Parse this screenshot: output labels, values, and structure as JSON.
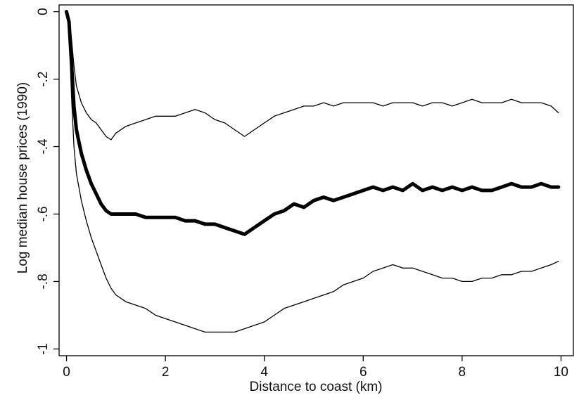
{
  "chart_data": {
    "type": "line",
    "title": "",
    "xlabel": "Distance to coast (km)",
    "ylabel": "Log median house prices (1990)",
    "xlim": [
      -0.15,
      10.25
    ],
    "ylim": [
      -1.02,
      0.02
    ],
    "x_ticks": [
      0,
      2,
      4,
      6,
      8,
      10
    ],
    "x_tick_labels": [
      "0",
      "2",
      "4",
      "6",
      "8",
      "10"
    ],
    "y_ticks": [
      0,
      -0.2,
      -0.4,
      -0.6,
      -0.8,
      -1
    ],
    "y_tick_labels": [
      "0",
      "-.2",
      "-.4",
      "-.6",
      "-.8",
      "-1"
    ],
    "grid": false,
    "legend": "none",
    "series": [
      {
        "role": "estimate",
        "color": "#000000",
        "x": [
          0,
          0.05,
          0.1,
          0.15,
          0.2,
          0.3,
          0.4,
          0.5,
          0.6,
          0.7,
          0.8,
          0.9,
          1.0,
          1.2,
          1.4,
          1.6,
          1.8,
          2.0,
          2.2,
          2.4,
          2.6,
          2.8,
          3.0,
          3.2,
          3.4,
          3.6,
          3.8,
          4.0,
          4.2,
          4.4,
          4.6,
          4.8,
          5.0,
          5.2,
          5.4,
          5.6,
          5.8,
          6.0,
          6.2,
          6.4,
          6.6,
          6.8,
          7.0,
          7.2,
          7.4,
          7.6,
          7.8,
          8.0,
          8.2,
          8.4,
          8.6,
          8.8,
          9.0,
          9.2,
          9.4,
          9.6,
          9.8,
          9.95
        ],
        "y": [
          0,
          -0.03,
          -0.15,
          -0.28,
          -0.35,
          -0.42,
          -0.47,
          -0.51,
          -0.54,
          -0.57,
          -0.59,
          -0.6,
          -0.6,
          -0.6,
          -0.6,
          -0.61,
          -0.61,
          -0.61,
          -0.61,
          -0.62,
          -0.62,
          -0.63,
          -0.63,
          -0.64,
          -0.65,
          -0.66,
          -0.64,
          -0.62,
          -0.6,
          -0.59,
          -0.57,
          -0.58,
          -0.56,
          -0.55,
          -0.56,
          -0.55,
          -0.54,
          -0.53,
          -0.52,
          -0.53,
          -0.52,
          -0.53,
          -0.51,
          -0.53,
          -0.52,
          -0.53,
          -0.52,
          -0.53,
          -0.52,
          -0.53,
          -0.53,
          -0.52,
          -0.51,
          -0.52,
          -0.52,
          -0.51,
          -0.52,
          -0.52
        ]
      },
      {
        "role": "upper-bound",
        "color": "#000000",
        "x": [
          0,
          0.05,
          0.1,
          0.15,
          0.2,
          0.3,
          0.4,
          0.5,
          0.6,
          0.7,
          0.8,
          0.9,
          1.0,
          1.2,
          1.4,
          1.6,
          1.8,
          2.0,
          2.2,
          2.4,
          2.6,
          2.8,
          3.0,
          3.2,
          3.4,
          3.6,
          3.8,
          4.0,
          4.2,
          4.4,
          4.6,
          4.8,
          5.0,
          5.2,
          5.4,
          5.6,
          5.8,
          6.0,
          6.2,
          6.4,
          6.6,
          6.8,
          7.0,
          7.2,
          7.4,
          7.6,
          7.8,
          8.0,
          8.2,
          8.4,
          8.6,
          8.8,
          9.0,
          9.2,
          9.4,
          9.6,
          9.8,
          9.95
        ],
        "y": [
          0,
          -0.02,
          -0.08,
          -0.16,
          -0.22,
          -0.27,
          -0.3,
          -0.32,
          -0.33,
          -0.35,
          -0.37,
          -0.38,
          -0.36,
          -0.34,
          -0.33,
          -0.32,
          -0.31,
          -0.31,
          -0.31,
          -0.3,
          -0.29,
          -0.3,
          -0.32,
          -0.33,
          -0.35,
          -0.37,
          -0.35,
          -0.33,
          -0.31,
          -0.3,
          -0.29,
          -0.28,
          -0.28,
          -0.27,
          -0.28,
          -0.27,
          -0.27,
          -0.27,
          -0.27,
          -0.28,
          -0.27,
          -0.27,
          -0.27,
          -0.28,
          -0.27,
          -0.27,
          -0.28,
          -0.27,
          -0.26,
          -0.27,
          -0.27,
          -0.27,
          -0.26,
          -0.27,
          -0.27,
          -0.27,
          -0.28,
          -0.3
        ]
      },
      {
        "role": "lower-bound",
        "color": "#000000",
        "x": [
          0,
          0.05,
          0.1,
          0.15,
          0.2,
          0.3,
          0.4,
          0.5,
          0.6,
          0.7,
          0.8,
          0.9,
          1.0,
          1.2,
          1.4,
          1.6,
          1.8,
          2.0,
          2.2,
          2.4,
          2.6,
          2.8,
          3.0,
          3.2,
          3.4,
          3.6,
          3.8,
          4.0,
          4.2,
          4.4,
          4.6,
          4.8,
          5.0,
          5.2,
          5.4,
          5.6,
          5.8,
          6.0,
          6.2,
          6.4,
          6.6,
          6.8,
          7.0,
          7.2,
          7.4,
          7.6,
          7.8,
          8.0,
          8.2,
          8.4,
          8.6,
          8.8,
          9.0,
          9.2,
          9.4,
          9.6,
          9.8,
          9.95
        ],
        "y": [
          0,
          -0.04,
          -0.25,
          -0.4,
          -0.48,
          -0.56,
          -0.62,
          -0.67,
          -0.71,
          -0.75,
          -0.79,
          -0.82,
          -0.84,
          -0.86,
          -0.87,
          -0.88,
          -0.9,
          -0.91,
          -0.92,
          -0.93,
          -0.94,
          -0.95,
          -0.95,
          -0.95,
          -0.95,
          -0.94,
          -0.93,
          -0.92,
          -0.9,
          -0.88,
          -0.87,
          -0.86,
          -0.85,
          -0.84,
          -0.83,
          -0.81,
          -0.8,
          -0.79,
          -0.77,
          -0.76,
          -0.75,
          -0.76,
          -0.76,
          -0.77,
          -0.78,
          -0.79,
          -0.79,
          -0.8,
          -0.8,
          -0.79,
          -0.79,
          -0.78,
          -0.78,
          -0.77,
          -0.77,
          -0.76,
          -0.75,
          -0.74
        ]
      }
    ]
  }
}
